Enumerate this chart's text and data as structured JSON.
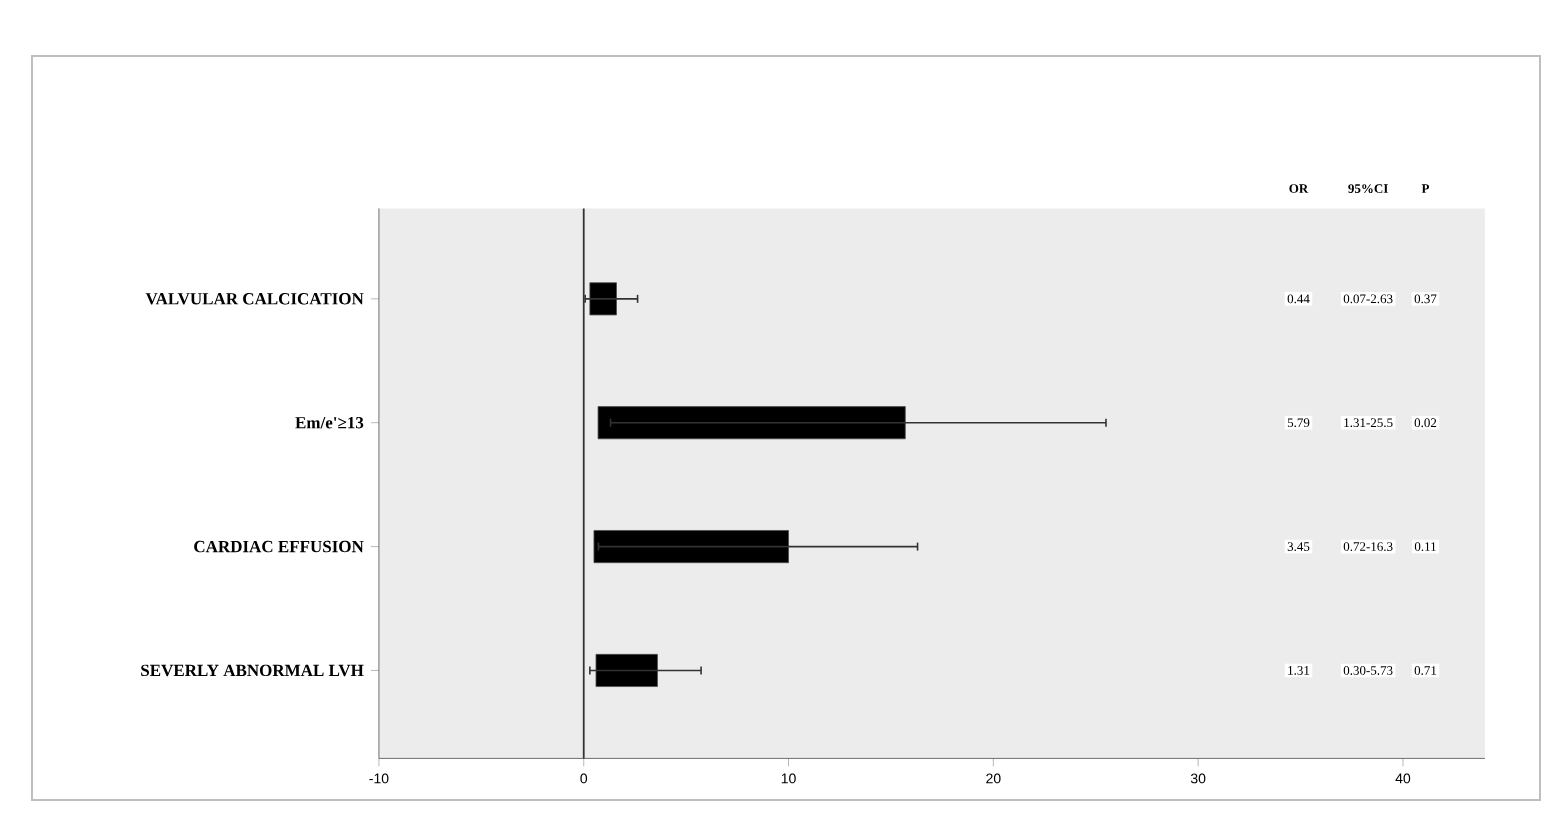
{
  "chart_data": {
    "type": "bar",
    "orientation": "horizontal",
    "categories": [
      "VALVULAR CALCICATION",
      "Em/e'≥13",
      "CARDIAC EFFUSION",
      "SEVERLY ABNORMAL LVH"
    ],
    "base": [
      0.3,
      0.7,
      0.5,
      0.6
    ],
    "values": [
      1.3,
      15.0,
      9.5,
      3.0
    ],
    "errors": [
      [
        0.07,
        2.63
      ],
      [
        1.31,
        25.5
      ],
      [
        0.72,
        16.3
      ],
      [
        0.3,
        5.73
      ]
    ],
    "color": "#000000",
    "xlim": [
      -10,
      44
    ],
    "xticks": [
      -10,
      0,
      10,
      20,
      30,
      40
    ],
    "ref_lines": [
      {
        "axis": "x",
        "value": 0
      }
    ],
    "annotations": [
      "OR",
      "95%CI",
      "P",
      "0.44",
      "0.07-2.63",
      "0.37",
      "5.79",
      "1.31-25.5",
      "0.02",
      "3.45",
      "0.72-16.3",
      "0.11",
      "1.31",
      "0.30-5.73",
      "0.71"
    ]
  }
}
